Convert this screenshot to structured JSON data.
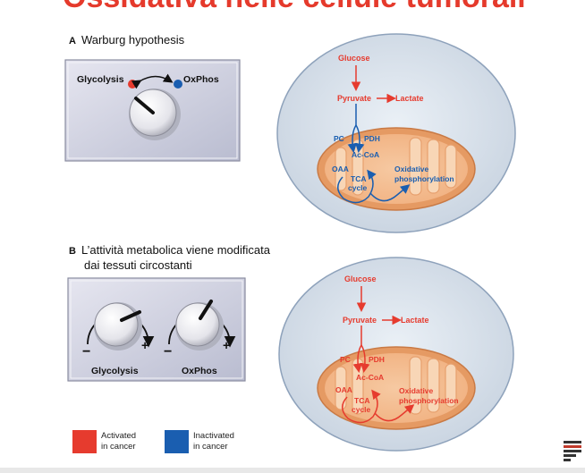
{
  "slide_title": "Ossidativa nelle cellule tumorali",
  "panel_a": {
    "letter": "A",
    "heading": "Warburg hypothesis",
    "dial_left_label": "Glycolysis",
    "dial_right_label": "OxPhos"
  },
  "panel_b": {
    "letter": "B",
    "heading_line1": "L’attività metabolica viene modificata",
    "heading_line2": "dai tessuti circostanti",
    "knob_left_label": "Glycolysis",
    "knob_right_label": "OxPhos",
    "minus": "−",
    "plus": "+"
  },
  "cell": {
    "glucose": "Glucose",
    "pyruvate": "Pyruvate",
    "lactate": "Lactate",
    "pc": "PC",
    "pdh": "PDH",
    "accoa": "Ac-CoA",
    "oaa": "OAA",
    "tca_line1": "TCA",
    "tca_line2": "cycle",
    "oxphos_line1": "Oxidative",
    "oxphos_line2": "phosphorylation"
  },
  "legend": {
    "activated_line1": "Activated",
    "activated_line2": "in cancer",
    "inactivated_line1": "Inactivated",
    "inactivated_line2": "in cancer"
  },
  "colors": {
    "activated": "#e63b2e",
    "inactivated": "#1a5eb0"
  }
}
